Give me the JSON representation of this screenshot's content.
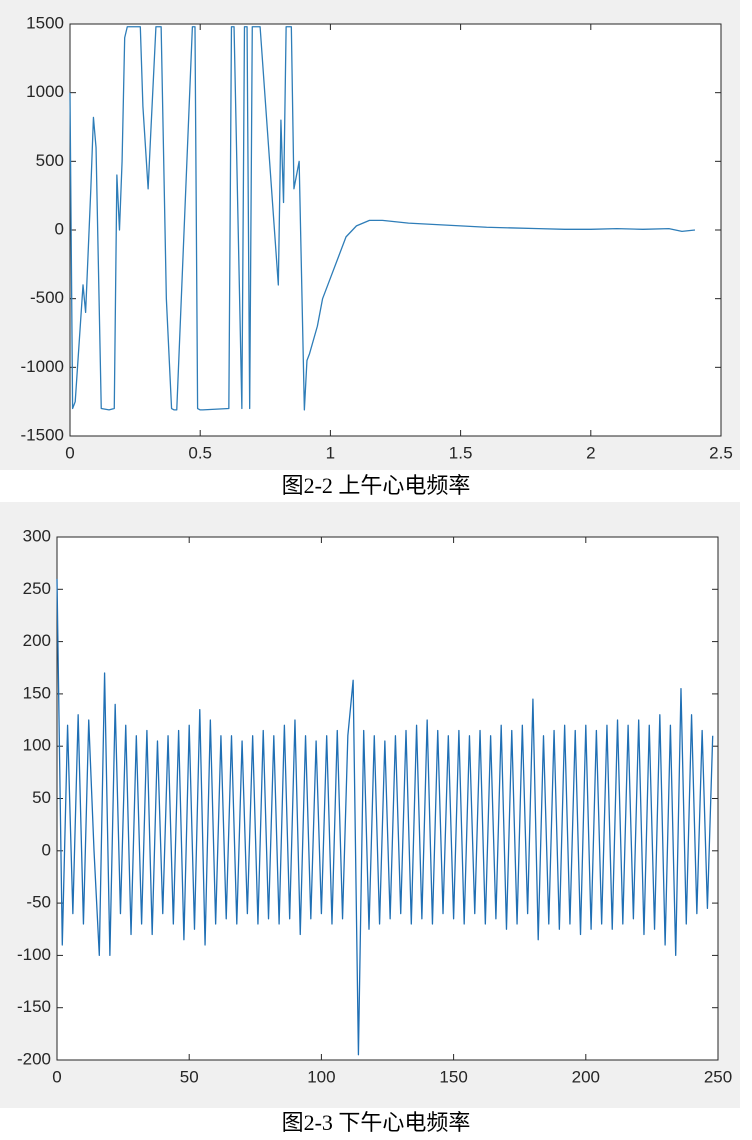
{
  "chart_data": [
    {
      "type": "line",
      "title": "图2-2 上午心电频率",
      "x": [
        0,
        0.01,
        0.02,
        0.05,
        0.06,
        0.08,
        0.09,
        0.1,
        0.12,
        0.15,
        0.17,
        0.18,
        0.19,
        0.2,
        0.21,
        0.22,
        0.27,
        0.28,
        0.3,
        0.31,
        0.33,
        0.34,
        0.35,
        0.37,
        0.39,
        0.4,
        0.41,
        0.47,
        0.48,
        0.49,
        0.5,
        0.51,
        0.61,
        0.62,
        0.63,
        0.66,
        0.67,
        0.68,
        0.69,
        0.7,
        0.72,
        0.73,
        0.8,
        0.81,
        0.82,
        0.83,
        0.85,
        0.86,
        0.88,
        0.9,
        0.91,
        0.92,
        0.95,
        0.97,
        1.0,
        1.03,
        1.06,
        1.1,
        1.15,
        1.2,
        1.25,
        1.3,
        1.4,
        1.5,
        1.6,
        1.7,
        1.8,
        1.9,
        2.0,
        2.1,
        2.2,
        2.3,
        2.35,
        2.4
      ],
      "series": [
        {
          "color": "#2e7db8",
          "values": [
            1000,
            -1300,
            -1250,
            -400,
            -600,
            300,
            820,
            600,
            -1300,
            -1310,
            -1300,
            400,
            0,
            500,
            1400,
            1480,
            1480,
            900,
            300,
            700,
            1480,
            1480,
            1480,
            -500,
            -1300,
            -1310,
            -1310,
            1480,
            1480,
            -1300,
            -1310,
            -1310,
            -1300,
            1480,
            1480,
            -1300,
            1480,
            1480,
            -1300,
            1480,
            1480,
            1480,
            -400,
            800,
            200,
            1480,
            1480,
            300,
            500,
            -1310,
            -950,
            -900,
            -700,
            -500,
            -350,
            -200,
            -50,
            30,
            70,
            70,
            60,
            50,
            40,
            30,
            20,
            15,
            10,
            5,
            5,
            10,
            5,
            10,
            -10,
            0
          ]
        }
      ],
      "xlim": [
        0,
        2.5
      ],
      "xticks": [
        0,
        0.5,
        1,
        1.5,
        2,
        2.5
      ],
      "ylim": [
        -1500,
        1500
      ],
      "yticks": [
        -1500,
        -1000,
        -500,
        0,
        500,
        1000,
        1500
      ]
    },
    {
      "type": "line",
      "title": "图2-3 下午心电频率",
      "x": [
        0,
        2,
        4,
        6,
        8,
        10,
        12,
        14,
        16,
        18,
        20,
        22,
        24,
        26,
        28,
        30,
        32,
        34,
        36,
        38,
        40,
        42,
        44,
        46,
        48,
        50,
        52,
        54,
        56,
        58,
        60,
        62,
        64,
        66,
        68,
        70,
        72,
        74,
        76,
        78,
        80,
        82,
        84,
        86,
        88,
        90,
        92,
        94,
        96,
        98,
        100,
        102,
        104,
        106,
        108,
        110,
        112,
        114,
        116,
        118,
        120,
        122,
        124,
        126,
        128,
        130,
        132,
        134,
        136,
        138,
        140,
        142,
        144,
        146,
        148,
        150,
        152,
        154,
        156,
        158,
        160,
        162,
        164,
        166,
        168,
        170,
        172,
        174,
        176,
        178,
        180,
        182,
        184,
        186,
        188,
        190,
        192,
        194,
        196,
        198,
        200,
        202,
        204,
        206,
        208,
        210,
        212,
        214,
        216,
        218,
        220,
        222,
        224,
        226,
        228,
        230,
        232,
        234,
        236,
        238,
        240,
        242,
        244,
        246,
        248
      ],
      "series": [
        {
          "color": "#1f6fb4",
          "values": [
            260,
            -90,
            120,
            -60,
            130,
            -70,
            125,
            0,
            -100,
            170,
            -100,
            140,
            -60,
            120,
            -80,
            110,
            -70,
            115,
            -80,
            105,
            -60,
            110,
            -70,
            115,
            -85,
            120,
            -75,
            135,
            -90,
            125,
            -70,
            110,
            -65,
            110,
            -70,
            105,
            -60,
            110,
            -70,
            115,
            -65,
            110,
            -70,
            120,
            -65,
            125,
            -80,
            110,
            -65,
            105,
            -60,
            110,
            -70,
            115,
            -65,
            110,
            163,
            -195,
            115,
            -75,
            110,
            -70,
            105,
            -65,
            110,
            -60,
            115,
            -70,
            120,
            -65,
            125,
            -70,
            115,
            -60,
            110,
            -65,
            115,
            -70,
            110,
            -60,
            115,
            -70,
            110,
            -65,
            120,
            -75,
            115,
            -70,
            120,
            -60,
            145,
            -85,
            110,
            -70,
            115,
            -75,
            120,
            -70,
            115,
            -80,
            120,
            -75,
            115,
            -70,
            120,
            -75,
            125,
            -70,
            120,
            -65,
            125,
            -80,
            120,
            -75,
            130,
            -90,
            120,
            -100,
            155,
            -70,
            130,
            -60,
            115,
            -55,
            110
          ]
        }
      ],
      "xlim": [
        0,
        250
      ],
      "xticks": [
        0,
        50,
        100,
        150,
        200,
        250
      ],
      "ylim": [
        -200,
        300
      ],
      "yticks": [
        -200,
        -150,
        -100,
        -50,
        0,
        50,
        100,
        150,
        200,
        250,
        300
      ]
    }
  ]
}
